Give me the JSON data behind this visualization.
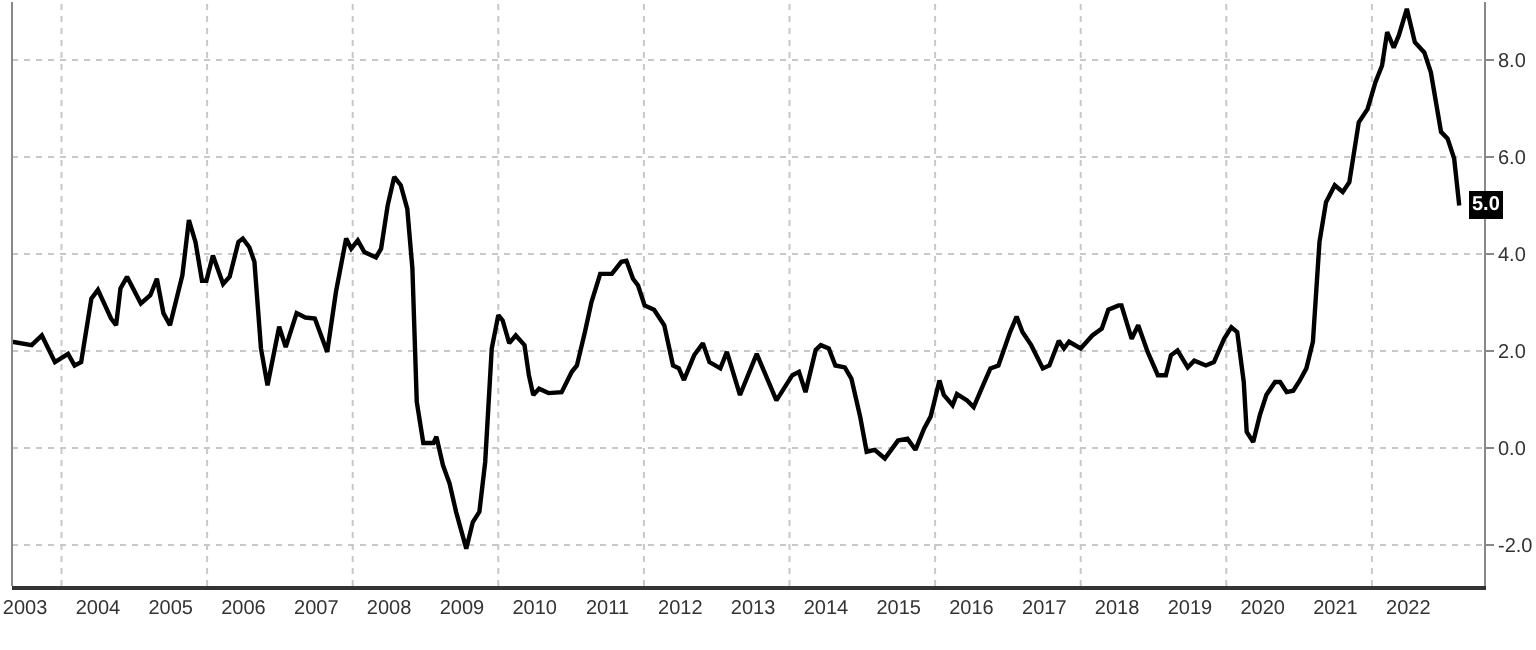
{
  "chart_data": {
    "type": "line",
    "x": [
      2003.32,
      2003.59,
      2003.73,
      2003.91,
      2004.09,
      2004.18,
      2004.27,
      2004.41,
      2004.5,
      2004.68,
      2004.75,
      2004.81,
      2004.9,
      2005.09,
      2005.22,
      2005.31,
      2005.4,
      2005.49,
      2005.66,
      2005.75,
      2005.84,
      2005.93,
      2005.99,
      2006.08,
      2006.22,
      2006.31,
      2006.43,
      2006.49,
      2006.58,
      2006.65,
      2006.74,
      2006.83,
      2006.99,
      2007.08,
      2007.23,
      2007.35,
      2007.48,
      2007.65,
      2007.77,
      2007.91,
      2007.98,
      2008.07,
      2008.16,
      2008.32,
      2008.39,
      2008.48,
      2008.57,
      2008.66,
      2008.75,
      2008.82,
      2008.88,
      2008.97,
      2009.11,
      2009.15,
      2009.24,
      2009.33,
      2009.42,
      2009.56,
      2009.65,
      2009.74,
      2009.82,
      2009.91,
      2010.0,
      2010.06,
      2010.15,
      2010.24,
      2010.36,
      2010.42,
      2010.48,
      2010.56,
      2010.69,
      2010.87,
      2011.01,
      2011.08,
      2011.19,
      2011.28,
      2011.4,
      2011.56,
      2011.69,
      2011.76,
      2011.85,
      2011.92,
      2012.01,
      2012.14,
      2012.28,
      2012.4,
      2012.48,
      2012.55,
      2012.69,
      2012.81,
      2012.9,
      2013.05,
      2013.14,
      2013.32,
      2013.55,
      2013.82,
      2014.04,
      2014.13,
      2014.22,
      2014.36,
      2014.43,
      2014.54,
      2014.63,
      2014.76,
      2014.85,
      2014.97,
      2015.06,
      2015.17,
      2015.31,
      2015.49,
      2015.62,
      2015.73,
      2015.85,
      2015.94,
      2016.06,
      2016.12,
      2016.24,
      2016.3,
      2016.44,
      2016.53,
      2016.67,
      2016.76,
      2016.87,
      2017.03,
      2017.12,
      2017.2,
      2017.32,
      2017.48,
      2017.57,
      2017.7,
      2017.77,
      2017.84,
      2018.0,
      2018.16,
      2018.29,
      2018.38,
      2018.52,
      2018.56,
      2018.7,
      2018.79,
      2018.92,
      2019.06,
      2019.17,
      2019.24,
      2019.33,
      2019.47,
      2019.56,
      2019.72,
      2019.83,
      2019.97,
      2020.07,
      2020.15,
      2020.24,
      2020.28,
      2020.37,
      2020.46,
      2020.55,
      2020.67,
      2020.74,
      2020.83,
      2020.92,
      2021.01,
      2021.1,
      2021.19,
      2021.28,
      2021.37,
      2021.49,
      2021.6,
      2021.69,
      2021.82,
      2021.94,
      2022.05,
      2022.14,
      2022.21,
      2022.3,
      2022.37,
      2022.48,
      2022.59,
      2022.72,
      2022.81,
      2022.95,
      2023.04,
      2023.13,
      2023.2
    ],
    "series": [
      {
        "color": "#000000",
        "values": [
          2.19,
          2.12,
          2.32,
          1.77,
          1.94,
          1.7,
          1.77,
          3.08,
          3.26,
          2.67,
          2.53,
          3.29,
          3.53,
          2.98,
          3.15,
          3.49,
          2.78,
          2.53,
          3.56,
          4.7,
          4.25,
          3.45,
          3.45,
          3.97,
          3.38,
          3.53,
          4.25,
          4.32,
          4.14,
          3.84,
          2.05,
          1.29,
          2.5,
          2.08,
          2.78,
          2.69,
          2.67,
          1.98,
          3.22,
          4.32,
          4.11,
          4.28,
          4.04,
          3.93,
          4.11,
          5.0,
          5.59,
          5.42,
          4.93,
          3.7,
          0.95,
          0.1,
          0.1,
          0.23,
          -0.36,
          -0.73,
          -1.32,
          -2.08,
          -1.53,
          -1.32,
          -0.29,
          2.05,
          2.74,
          2.63,
          2.16,
          2.32,
          2.12,
          1.5,
          1.09,
          1.22,
          1.13,
          1.15,
          1.57,
          1.7,
          2.39,
          3.01,
          3.59,
          3.59,
          3.84,
          3.86,
          3.49,
          3.35,
          2.94,
          2.85,
          2.53,
          1.7,
          1.64,
          1.4,
          1.91,
          2.16,
          1.77,
          1.64,
          1.98,
          1.09,
          1.94,
          0.98,
          1.5,
          1.57,
          1.15,
          2.02,
          2.12,
          2.05,
          1.7,
          1.66,
          1.43,
          0.65,
          -0.08,
          -0.04,
          -0.22,
          0.15,
          0.19,
          -0.04,
          0.4,
          0.65,
          1.39,
          1.09,
          0.88,
          1.11,
          0.98,
          0.84,
          1.33,
          1.64,
          1.7,
          2.39,
          2.71,
          2.39,
          2.12,
          1.64,
          1.7,
          2.21,
          2.05,
          2.19,
          2.05,
          2.32,
          2.46,
          2.85,
          2.94,
          2.94,
          2.25,
          2.53,
          1.98,
          1.5,
          1.5,
          1.91,
          2.01,
          1.66,
          1.8,
          1.7,
          1.77,
          2.25,
          2.49,
          2.39,
          1.36,
          0.33,
          0.12,
          0.67,
          1.09,
          1.36,
          1.36,
          1.15,
          1.18,
          1.39,
          1.64,
          2.19,
          4.25,
          5.07,
          5.42,
          5.28,
          5.48,
          6.72,
          6.99,
          7.55,
          7.89,
          8.58,
          8.26,
          8.51,
          9.06,
          8.37,
          8.16,
          7.75,
          6.52,
          6.38,
          5.97,
          5.0
        ]
      }
    ],
    "annotations": [
      {
        "text": "5.0",
        "x": 2023.2,
        "y": 5.0
      }
    ],
    "xlim": [
      2003.32,
      2023.54
    ],
    "xticks": [
      {
        "value": 2003.5,
        "label": "2003"
      },
      {
        "value": 2004,
        "label": null
      },
      {
        "value": 2004.5,
        "label": "2004"
      },
      {
        "value": 2005.5,
        "label": "2005"
      },
      {
        "value": 2006,
        "label": null
      },
      {
        "value": 2006.5,
        "label": "2006"
      },
      {
        "value": 2007.5,
        "label": "2007"
      },
      {
        "value": 2008,
        "label": null
      },
      {
        "value": 2008.5,
        "label": "2008"
      },
      {
        "value": 2009.5,
        "label": "2009"
      },
      {
        "value": 2010,
        "label": null
      },
      {
        "value": 2010.5,
        "label": "2010"
      },
      {
        "value": 2011.5,
        "label": "2011"
      },
      {
        "value": 2012,
        "label": null
      },
      {
        "value": 2012.5,
        "label": "2012"
      },
      {
        "value": 2013.5,
        "label": "2013"
      },
      {
        "value": 2014,
        "label": null
      },
      {
        "value": 2014.5,
        "label": "2014"
      },
      {
        "value": 2015.5,
        "label": "2015"
      },
      {
        "value": 2016,
        "label": null
      },
      {
        "value": 2016.5,
        "label": "2016"
      },
      {
        "value": 2017.5,
        "label": "2017"
      },
      {
        "value": 2018,
        "label": null
      },
      {
        "value": 2018.5,
        "label": "2018"
      },
      {
        "value": 2019.5,
        "label": "2019"
      },
      {
        "value": 2020,
        "label": null
      },
      {
        "value": 2020.5,
        "label": "2020"
      },
      {
        "value": 2021.5,
        "label": "2021"
      },
      {
        "value": 2022,
        "label": null
      },
      {
        "value": 2022.5,
        "label": "2022"
      }
    ],
    "ylim": [
      -2.85,
      9.2
    ],
    "yticks": [
      {
        "value": -2,
        "label": "-2.0"
      },
      {
        "value": 0,
        "label": "0.0"
      },
      {
        "value": 2,
        "label": "2.0"
      },
      {
        "value": 4,
        "label": "4.0"
      },
      {
        "value": 6,
        "label": "6.0"
      },
      {
        "value": 8,
        "label": "8.0"
      }
    ],
    "grid": true,
    "line_style": "solid",
    "marker": "none"
  }
}
